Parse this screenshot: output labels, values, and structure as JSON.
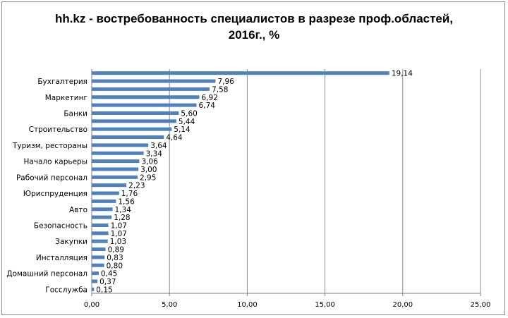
{
  "chart_data": {
    "type": "bar",
    "orientation": "horizontal",
    "title_lines": [
      "hh.kz - востребованность специалистов в разрезе проф.областей,",
      "2016г., %"
    ],
    "categories": [
      "",
      "Бухгалтерия",
      "",
      "Маркетинг",
      "",
      "Банки",
      "",
      "Строительство",
      "",
      "Туризм, рестораны",
      "",
      "Начало карьеры",
      "",
      "Рабочий персонал",
      "",
      "Юриспруденция",
      "",
      "Авто",
      "",
      "Безопасность",
      "",
      "Закупки",
      "",
      "Инсталляция",
      "",
      "Домашний персонал",
      "",
      "Госслужба"
    ],
    "values": [
      19.14,
      7.96,
      7.58,
      6.92,
      6.74,
      5.6,
      5.44,
      5.14,
      4.64,
      3.64,
      3.34,
      3.06,
      3.0,
      2.95,
      2.23,
      1.76,
      1.56,
      1.34,
      1.28,
      1.07,
      1.07,
      1.03,
      0.89,
      0.83,
      0.8,
      0.45,
      0.37,
      0.15
    ],
    "value_labels": [
      "19,14",
      "7,96",
      "7,58",
      "6,92",
      "6,74",
      "5,60",
      "5,44",
      "5,14",
      "4,64",
      "3,64",
      "3,34",
      "3,06",
      "3,00",
      "2,95",
      "2,23",
      "1,76",
      "1,56",
      "1,34",
      "1,28",
      "1,07",
      "1,07",
      "1,03",
      "0,89",
      "0,83",
      "0,80",
      "0,45",
      "0,37",
      "0,15"
    ],
    "xlim": [
      0,
      25
    ],
    "xticks": [
      0,
      5,
      10,
      15,
      20,
      25
    ],
    "xtick_labels": [
      "0,00",
      "5,00",
      "10,00",
      "15,00",
      "20,00",
      "25,00"
    ],
    "grid": "vertical",
    "legend": "none",
    "colors": {
      "bar": "#4f81bd",
      "grid": "#8c8c8c",
      "axis": "#7f7f7f"
    }
  }
}
